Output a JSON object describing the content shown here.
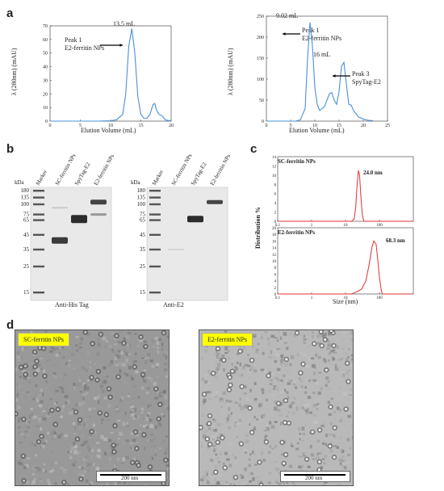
{
  "panels": {
    "a": "a",
    "b": "b",
    "c": "c",
    "d": "d"
  },
  "chart_data": [
    {
      "type": "line",
      "panel": "a-left",
      "xlabel": "Elution Volume (mL)",
      "ylabel": "λ (280nm) (mAU)",
      "xlim": [
        0,
        20
      ],
      "ylim": [
        0,
        70
      ],
      "xticks": [
        "0",
        "5",
        "10",
        "15",
        "20"
      ],
      "yticks": [
        "0",
        "10",
        "20",
        "30",
        "40",
        "50",
        "60",
        "70"
      ],
      "series": [
        {
          "x": [
            0,
            2,
            4,
            6,
            8,
            10,
            11,
            12,
            12.5,
            13,
            13.5,
            14,
            14.5,
            15,
            15.5,
            16,
            16.5,
            17,
            17.3,
            17.6,
            18,
            18.5,
            19,
            19.5,
            20
          ],
          "values": [
            0,
            0,
            0,
            0,
            0,
            0.3,
            1,
            5,
            20,
            55,
            68,
            50,
            18,
            5,
            2,
            2,
            5,
            12,
            13,
            8,
            5,
            4,
            1,
            0.5,
            0.3
          ]
        }
      ],
      "annotations": [
        {
          "text": "13.5 mL",
          "x": 13.5,
          "y": 68
        },
        {
          "text": "Peak 1",
          "x": 3.5,
          "y": 56
        },
        {
          "text": "E2-ferritin NPs",
          "x": 3.5,
          "y": 50
        }
      ]
    },
    {
      "type": "line",
      "panel": "a-right",
      "xlabel": "Elution Volume (mL)",
      "ylabel": "λ (280nm) (mAU)",
      "xlim": [
        0,
        25
      ],
      "ylim": [
        0,
        250
      ],
      "xticks": [
        "0",
        "5",
        "10",
        "15",
        "20",
        "25"
      ],
      "yticks": [
        "0",
        "50",
        "100",
        "150",
        "200",
        "250"
      ],
      "series": [
        {
          "x": [
            0,
            2,
            4,
            6,
            7,
            8,
            8.5,
            9,
            9.5,
            10,
            10.5,
            11,
            12,
            13,
            13.5,
            14,
            14.5,
            15,
            15.5,
            16,
            16.5,
            17,
            17.5,
            18,
            19,
            20,
            21,
            22
          ],
          "values": [
            0,
            0,
            0,
            0,
            3,
            30,
            150,
            235,
            180,
            80,
            40,
            25,
            35,
            65,
            68,
            50,
            40,
            70,
            130,
            140,
            90,
            40,
            38,
            25,
            10,
            5,
            2,
            1
          ]
        }
      ],
      "annotations": [
        {
          "text": "9.02 mL",
          "x": 9.02,
          "y": 235
        },
        {
          "text": "Peak 1",
          "x": 12,
          "y": 220
        },
        {
          "text": "E2-ferritin NPs",
          "x": 12,
          "y": 200
        },
        {
          "text": "16 mL",
          "x": 16,
          "y": 140
        },
        {
          "text": "Peak 3",
          "x": 19,
          "y": 110
        },
        {
          "text": "SpyTag-E2",
          "x": 19,
          "y": 92
        }
      ]
    },
    {
      "type": "line",
      "panel": "c-top",
      "title": "SC-ferritin NPs",
      "xscale": "log",
      "xlim": [
        0.1,
        1000
      ],
      "ylim": [
        0,
        14
      ],
      "yticks": [
        "0",
        "2",
        "4",
        "6",
        "8",
        "10",
        "12",
        "14"
      ],
      "xticks": [
        "0.1",
        "1",
        "10",
        "100"
      ],
      "series": [
        {
          "x": [
            0.1,
            10,
            15,
            18,
            20,
            22,
            24,
            26,
            28,
            30,
            32,
            35,
            40,
            1000
          ],
          "values": [
            0,
            0,
            0,
            0.5,
            3,
            8,
            11,
            10,
            6,
            3,
            1,
            0,
            0,
            0
          ]
        }
      ],
      "annotations": [
        {
          "text": "24.0 nm",
          "x": 24,
          "y": 11
        }
      ]
    },
    {
      "type": "line",
      "panel": "c-bottom",
      "title": "E2-ferritin NPs",
      "xlabel": "Size (nm)",
      "xscale": "log",
      "xlim": [
        0.1,
        1000
      ],
      "ylim": [
        0,
        20
      ],
      "yticks": [
        "0",
        "2",
        "4",
        "6",
        "8",
        "10",
        "12",
        "14",
        "16",
        "18",
        "20"
      ],
      "xticks": [
        "0.1",
        "1",
        "10",
        "100"
      ],
      "series": [
        {
          "x": [
            0.1,
            15,
            20,
            25,
            30,
            40,
            50,
            60,
            68.3,
            80,
            90,
            100,
            110,
            120,
            1000
          ],
          "values": [
            0,
            0,
            0.5,
            1,
            1.5,
            4,
            9,
            14,
            16,
            15,
            10,
            5,
            2,
            0,
            0
          ]
        }
      ],
      "annotations": [
        {
          "text": "68.3 nm",
          "x": 68.3,
          "y": 16
        }
      ]
    }
  ],
  "shared": {
    "c_ylabel": "Distribution %"
  },
  "gels": {
    "left": {
      "kda": "kDa",
      "lanes": [
        "Marker",
        "SC-ferritin NPs",
        "SpyTag-E2",
        "E2-ferritin NPs"
      ],
      "markers": [
        "180",
        "135",
        "100",
        "75",
        "65",
        "45",
        "35",
        "25",
        "15"
      ],
      "caption": "Anti-His Tag"
    },
    "right": {
      "kda": "kDa",
      "lanes": [
        "Marker",
        "SC-ferritin NPs",
        "SpyTag-E2",
        "E2-ferritin NPs"
      ],
      "markers": [
        "180",
        "135",
        "100",
        "75",
        "65",
        "45",
        "35",
        "25",
        "15"
      ],
      "caption": "Anti-E2"
    }
  },
  "em": {
    "left": {
      "label": "SC-ferritin NPs",
      "scalebar": "200 nm"
    },
    "right": {
      "label": "E2-ferritin NPs",
      "scalebar": "200 nm"
    }
  }
}
